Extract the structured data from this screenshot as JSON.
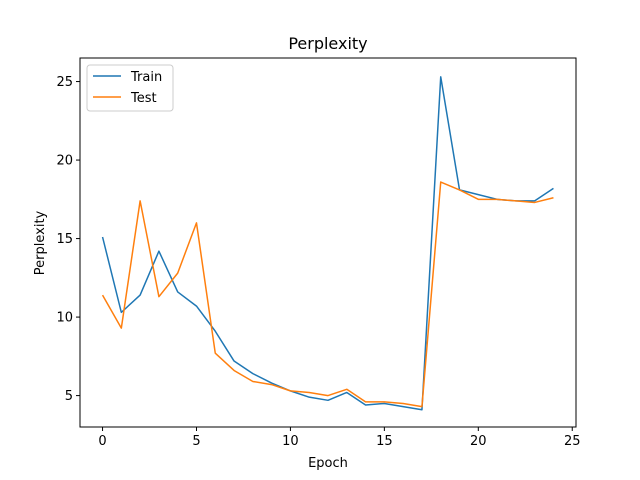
{
  "chart_data": {
    "type": "line",
    "title": "Perplexity",
    "xlabel": "Epoch",
    "ylabel": "Perplexity",
    "xlim": [
      -1.2,
      25.2
    ],
    "ylim": [
      3.0,
      26.5
    ],
    "xticks": [
      0,
      5,
      10,
      15,
      20,
      25
    ],
    "yticks": [
      5,
      10,
      15,
      20,
      25
    ],
    "grid": false,
    "legend_position": "top-left",
    "x": [
      0,
      1,
      2,
      3,
      4,
      5,
      6,
      7,
      8,
      9,
      10,
      11,
      12,
      13,
      14,
      15,
      16,
      17,
      18,
      19,
      20,
      21,
      22,
      23,
      24
    ],
    "series": [
      {
        "name": "Train",
        "color": "#1f77b4",
        "values": [
          15.1,
          10.3,
          11.4,
          14.2,
          11.6,
          10.7,
          9.1,
          7.2,
          6.4,
          5.8,
          5.3,
          4.9,
          4.7,
          5.2,
          4.4,
          4.5,
          4.3,
          4.1,
          25.3,
          18.1,
          17.8,
          17.5,
          17.4,
          17.4,
          18.2
        ]
      },
      {
        "name": "Test",
        "color": "#ff7f0e",
        "values": [
          11.4,
          9.3,
          17.4,
          11.3,
          12.8,
          16.0,
          7.7,
          6.6,
          5.9,
          5.7,
          5.3,
          5.2,
          5.0,
          5.4,
          4.6,
          4.6,
          4.5,
          4.3,
          18.6,
          18.1,
          17.5,
          17.5,
          17.4,
          17.3,
          17.6
        ]
      }
    ]
  }
}
